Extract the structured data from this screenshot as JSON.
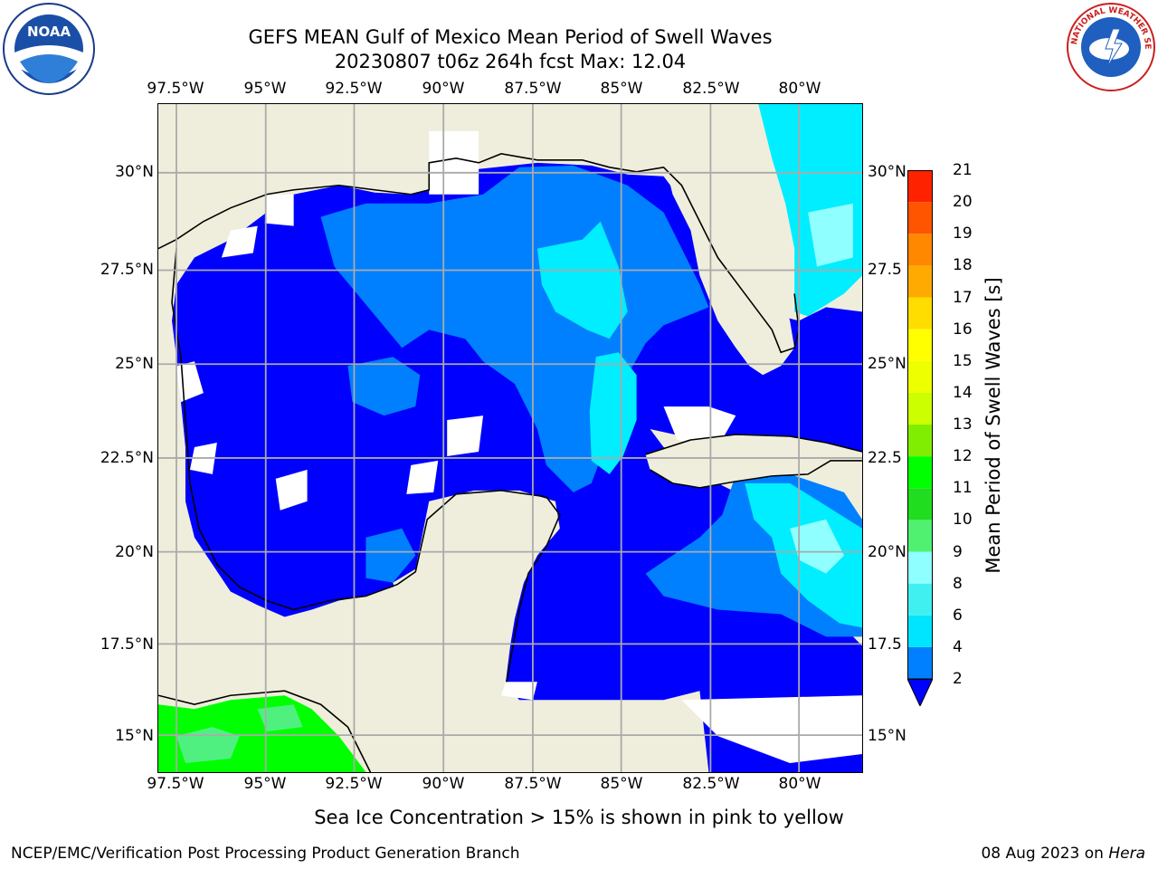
{
  "header": {
    "title_line1": "GEFS MEAN Gulf of Mexico Mean Period of Swell Waves",
    "title_line2": "20230807 t06z 264h fcst   Max: 12.04"
  },
  "logos": {
    "left": {
      "icon": "noaa-logo-icon",
      "text": "NOAA"
    },
    "right": {
      "icon": "nws-logo-icon",
      "text": "NATIONAL WEATHER SERVICE"
    }
  },
  "axes": {
    "lon_labels": [
      "97.5°W",
      "95°W",
      "92.5°W",
      "90°W",
      "87.5°W",
      "85°W",
      "82.5°W",
      "80°W"
    ],
    "lat_labels_left": [
      "30°N",
      "27.5°N",
      "25°N",
      "22.5°N",
      "20°N",
      "17.5°N",
      "15°N"
    ],
    "lat_labels_right": [
      "30°N",
      "27.5",
      "25°N",
      "22.5",
      "20°N",
      "17.5",
      "15°N"
    ]
  },
  "colorbar": {
    "title": "Mean Period of Swell Waves [s]",
    "ticks": [
      "2",
      "4",
      "6",
      "8",
      "9",
      "10",
      "11",
      "12",
      "13",
      "14",
      "15",
      "16",
      "17",
      "18",
      "19",
      "20",
      "21"
    ],
    "colors": [
      "#0a3cf0",
      "#0080ff",
      "#00e5ff",
      "#40f0f0",
      "#90ffff",
      "#50f070",
      "#20dd20",
      "#00ff00",
      "#80ee00",
      "#ccff00",
      "#eeff00",
      "#ffff00",
      "#ffdd00",
      "#ffaa00",
      "#ff8800",
      "#ff5500",
      "#ff2200",
      "#ff0000"
    ],
    "extend_color": "#0000ff"
  },
  "map_colors": {
    "land": "#efeedc",
    "water_low": "#0000ff",
    "water_mid": "#0080ff",
    "water_high": "#00eeff",
    "water_light": "#90ffff",
    "green": "#00ff00",
    "green_light": "#50f080",
    "grid": "#aaaaaa"
  },
  "footer": {
    "note": "Sea Ice Concentration > 15% is shown in pink to yellow",
    "left": "NCEP/EMC/Verification Post Processing Product Generation Branch",
    "right_date": "08 Aug 2023 on ",
    "right_machine": "Hera"
  }
}
